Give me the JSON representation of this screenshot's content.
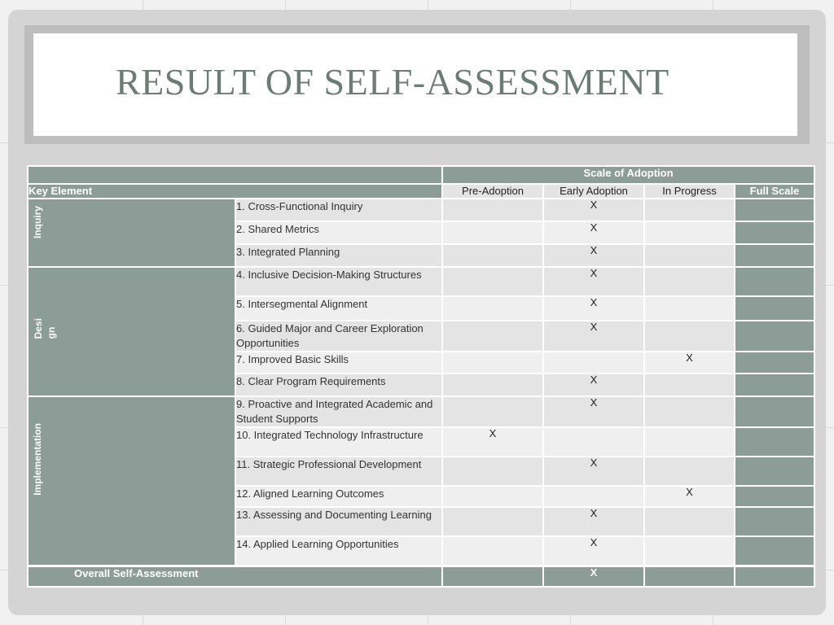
{
  "slide": {
    "title": "RESULT OF SELF-ASSESSMENT"
  },
  "table": {
    "scale_header": "Scale of Adoption",
    "key_element_header": "Key Element",
    "columns": [
      "Pre-Adoption",
      "Early Adoption",
      "In Progress",
      "Full Scale"
    ],
    "groups": [
      "Inquiry",
      "Desi\ngn",
      "Implementation"
    ],
    "rows": [
      {
        "item": "1. Cross-Functional Inquiry",
        "pre": "",
        "early": "X",
        "progress": "",
        "full": ""
      },
      {
        "item": "2. Shared Metrics",
        "pre": "",
        "early": "X",
        "progress": "",
        "full": ""
      },
      {
        "item": "3. Integrated Planning",
        "pre": "",
        "early": "X",
        "progress": "",
        "full": ""
      },
      {
        "item": "4. Inclusive Decision-Making Structures",
        "pre": "",
        "early": "X",
        "progress": "",
        "full": ""
      },
      {
        "item": "5. Intersegmental Alignment",
        "pre": "",
        "early": "X",
        "progress": "",
        "full": ""
      },
      {
        "item": "6. Guided Major and Career Exploration Opportunities",
        "pre": "",
        "early": "X",
        "progress": "",
        "full": ""
      },
      {
        "item": "7. Improved Basic Skills",
        "pre": "",
        "early": "",
        "progress": "X",
        "full": ""
      },
      {
        "item": "8. Clear Program Requirements",
        "pre": "",
        "early": "X",
        "progress": "",
        "full": ""
      },
      {
        "item": "9. Proactive and Integrated Academic and Student Supports",
        "pre": "",
        "early": "X",
        "progress": "",
        "full": ""
      },
      {
        "item": "10. Integrated Technology Infrastructure",
        "pre": "X",
        "early": "",
        "progress": "",
        "full": ""
      },
      {
        "item": "11. Strategic Professional Development",
        "pre": "",
        "early": "X",
        "progress": "",
        "full": ""
      },
      {
        "item": "12. Aligned Learning Outcomes",
        "pre": "",
        "early": "",
        "progress": "X",
        "full": ""
      },
      {
        "item": "13. Assessing and Documenting Learning",
        "pre": "",
        "early": "X",
        "progress": "",
        "full": ""
      },
      {
        "item": "14. Applied Learning Opportunities",
        "pre": "",
        "early": "X",
        "progress": "",
        "full": ""
      }
    ],
    "overall": {
      "label": "Overall Self-Assessment",
      "pre": "",
      "early": "X",
      "progress": "",
      "full": ""
    }
  }
}
